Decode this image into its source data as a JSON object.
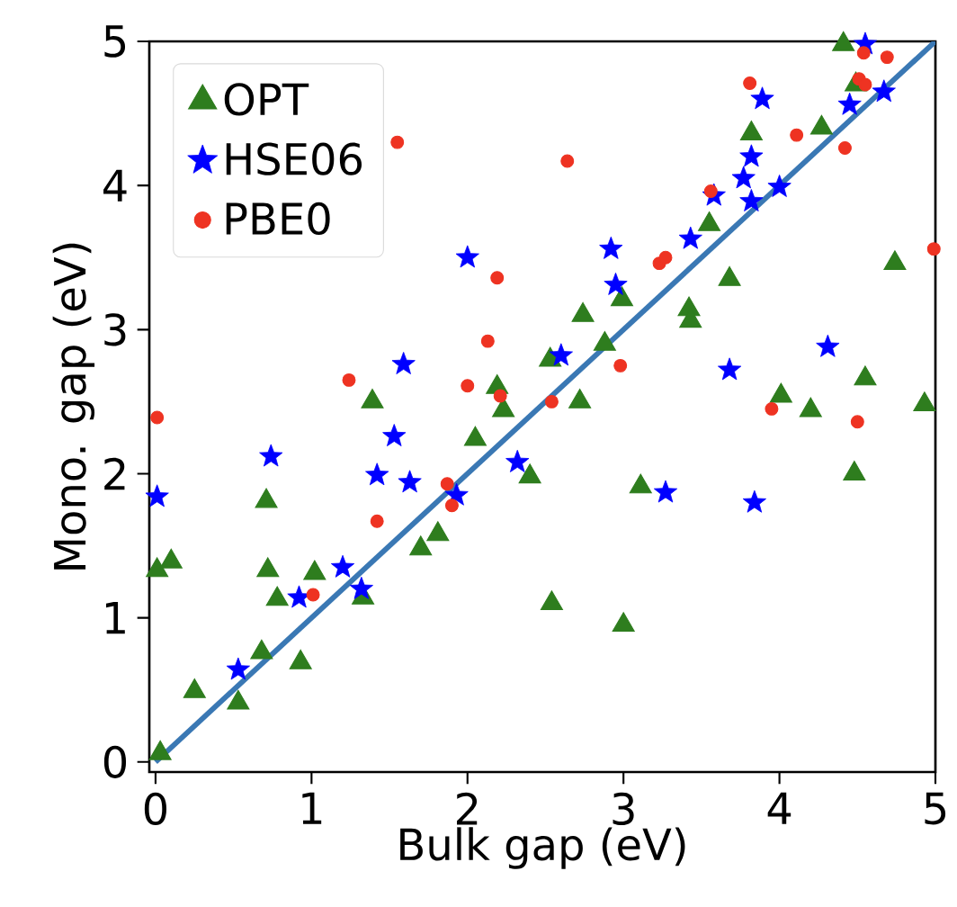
{
  "chart_data": {
    "type": "scatter",
    "xlabel": "Bulk gap (eV)",
    "ylabel": "Mono. gap (eV)",
    "xlim": [
      -0.04,
      5
    ],
    "ylim": [
      -0.07,
      5
    ],
    "xticks": [
      0,
      1,
      2,
      3,
      4,
      5
    ],
    "yticks": [
      0,
      1,
      2,
      3,
      4,
      5
    ],
    "grid": false,
    "legend": "top left",
    "series": [
      {
        "name": "OPT",
        "color": "#2e7d1e",
        "marker": "triangle",
        "x": [
          0.03,
          0.01,
          0.1,
          0.25,
          0.53,
          0.68,
          0.93,
          0.72,
          0.78,
          1.02,
          0.71,
          1.33,
          1.7,
          1.81,
          2.05,
          1.39,
          2.19,
          2.23,
          2.4,
          2.54,
          2.72,
          3.11,
          3.0,
          4.01,
          4.2,
          4.48,
          4.55,
          4.93,
          2.74,
          2.99,
          3.42,
          3.43,
          3.68,
          3.55,
          2.88,
          2.53,
          3.82,
          4.27,
          4.74,
          4.49,
          4.41
        ],
        "values": [
          0.06,
          1.33,
          1.39,
          0.49,
          0.41,
          0.76,
          0.69,
          1.33,
          1.13,
          1.31,
          1.81,
          1.14,
          1.48,
          1.58,
          2.24,
          2.5,
          2.6,
          2.44,
          1.98,
          1.1,
          2.5,
          1.91,
          0.95,
          2.54,
          2.44,
          2.0,
          2.66,
          2.48,
          3.1,
          3.21,
          3.14,
          3.06,
          3.35,
          3.73,
          2.9,
          2.79,
          4.36,
          4.4,
          3.46,
          4.7,
          4.98
        ]
      },
      {
        "name": "HSE06",
        "color": "#0000ff",
        "marker": "star",
        "x": [
          0.01,
          0.53,
          0.74,
          0.92,
          1.2,
          1.32,
          1.42,
          1.53,
          1.63,
          1.93,
          2.32,
          1.59,
          2.0,
          2.6,
          2.95,
          2.92,
          3.43,
          3.58,
          3.82,
          3.77,
          3.82,
          4.0,
          3.89,
          4.45,
          4.67,
          4.55,
          3.68,
          4.31,
          3.27,
          3.84
        ],
        "values": [
          1.84,
          0.64,
          2.12,
          1.14,
          1.35,
          1.2,
          1.99,
          2.26,
          1.94,
          1.85,
          2.08,
          2.76,
          3.5,
          2.82,
          3.31,
          3.56,
          3.63,
          3.93,
          3.89,
          4.05,
          4.2,
          3.99,
          4.6,
          4.56,
          4.65,
          4.98,
          2.72,
          2.88,
          1.87,
          1.8
        ]
      },
      {
        "name": "PBE0",
        "color": "#ee3322",
        "marker": "circle",
        "x": [
          0.01,
          1.01,
          1.42,
          1.87,
          1.9,
          1.24,
          2.0,
          2.21,
          2.13,
          1.55,
          2.19,
          2.64,
          2.98,
          3.23,
          3.27,
          3.56,
          3.81,
          4.11,
          4.42,
          4.51,
          4.55,
          4.54,
          4.69,
          4.99,
          2.54,
          3.95,
          4.5
        ],
        "values": [
          2.39,
          1.16,
          1.67,
          1.93,
          1.78,
          2.65,
          2.61,
          2.54,
          2.92,
          4.3,
          3.36,
          4.17,
          2.75,
          3.46,
          3.5,
          3.96,
          4.71,
          4.35,
          4.26,
          4.74,
          4.7,
          4.92,
          4.89,
          3.56,
          2.5,
          2.45,
          2.36
        ]
      },
      {
        "type": "line",
        "color": "#3a78b4",
        "marker": "none",
        "x": [
          0,
          5
        ],
        "values": [
          0,
          5
        ]
      }
    ]
  }
}
